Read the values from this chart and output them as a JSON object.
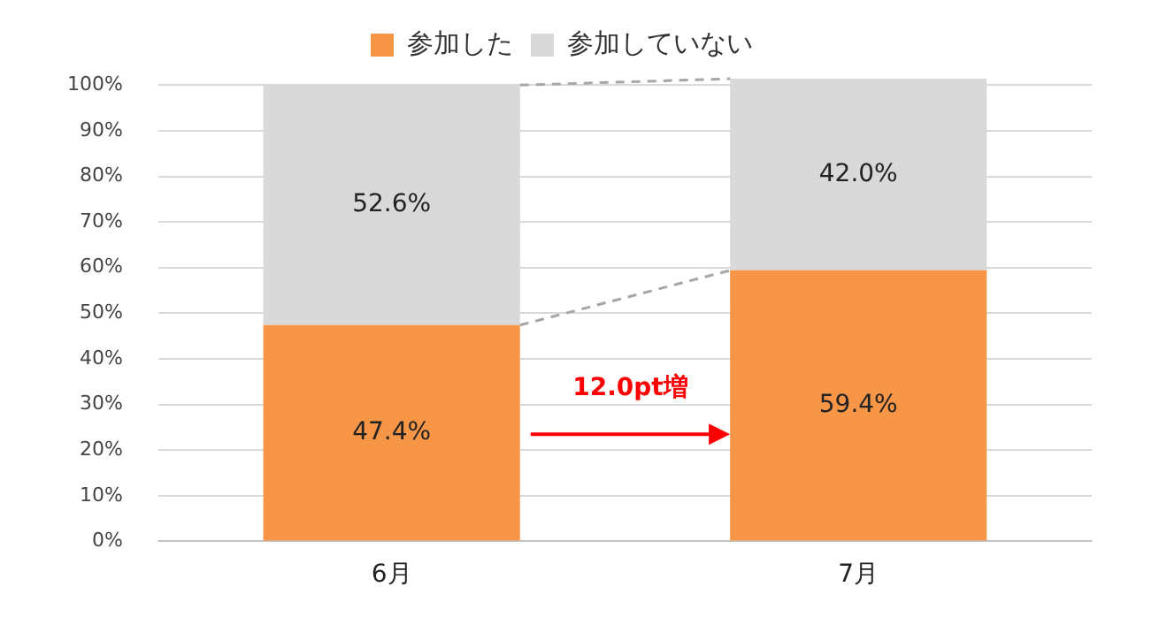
{
  "chart_data": {
    "type": "bar",
    "stacked": true,
    "categories": [
      "6月",
      "7月"
    ],
    "series": [
      {
        "name": "参加した",
        "color": "#f79646",
        "values": [
          47.4,
          59.4
        ],
        "value_labels": [
          "47.4%",
          "59.4%"
        ]
      },
      {
        "name": "参加していない",
        "color": "#d9d9d9",
        "values": [
          52.6,
          42.0
        ],
        "value_labels": [
          "52.6%",
          "42.0%"
        ]
      }
    ],
    "ylim": [
      0,
      102
    ],
    "yticks": [
      {
        "value": 0,
        "label": "0%"
      },
      {
        "value": 10,
        "label": "10%"
      },
      {
        "value": 20,
        "label": "20%"
      },
      {
        "value": 30,
        "label": "30%"
      },
      {
        "value": 40,
        "label": "40%"
      },
      {
        "value": 50,
        "label": "50%"
      },
      {
        "value": 60,
        "label": "60%"
      },
      {
        "value": 70,
        "label": "70%"
      },
      {
        "value": 80,
        "label": "80%"
      },
      {
        "value": 90,
        "label": "90%"
      },
      {
        "value": 100,
        "label": "100%"
      }
    ],
    "grid": "y",
    "legend": "top",
    "annotations": [
      "12.0pt増"
    ]
  }
}
